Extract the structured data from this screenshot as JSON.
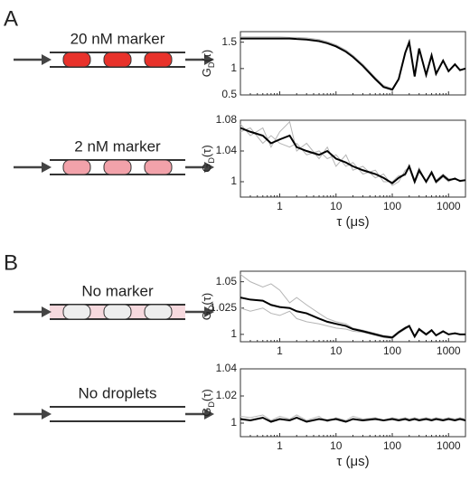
{
  "panel_labels": [
    "A",
    "B"
  ],
  "diagrams": [
    {
      "label": "20 nM marker"
    },
    {
      "label": "2 nM marker"
    },
    {
      "label": "No marker"
    },
    {
      "label": "No droplets"
    }
  ],
  "chart_data": [
    {
      "type": "line",
      "ylabel": {
        "main": "G",
        "sub": "D",
        "tail": "(τ)"
      },
      "xscale": "log",
      "xlim": [
        0.2,
        2000
      ],
      "xticks": [
        1,
        10,
        100,
        1000
      ],
      "show_xticklabels": false,
      "ylim": [
        0.5,
        1.7
      ],
      "yticks": [
        0.5,
        1,
        1.5
      ],
      "x": [
        0.2,
        0.3,
        0.5,
        0.7,
        1,
        1.5,
        2,
        3,
        5,
        7,
        10,
        15,
        20,
        30,
        50,
        70,
        100,
        130,
        170,
        200,
        250,
        300,
        400,
        500,
        600,
        800,
        1000,
        1300,
        1600,
        2000
      ],
      "series": [
        {
          "color": "#b5b5b5",
          "values": [
            1.6,
            1.6,
            1.6,
            1.6,
            1.6,
            1.59,
            1.59,
            1.58,
            1.55,
            1.51,
            1.45,
            1.35,
            1.25,
            1.08,
            0.83,
            0.68,
            0.62,
            0.82,
            1.28,
            1.47,
            0.86,
            1.36,
            0.89,
            1.23,
            0.91,
            1.14,
            0.96,
            1.07,
            0.98,
            1.0
          ]
        },
        {
          "color": "#000000",
          "values": [
            1.57,
            1.57,
            1.57,
            1.57,
            1.57,
            1.57,
            1.56,
            1.55,
            1.52,
            1.48,
            1.42,
            1.32,
            1.22,
            1.05,
            0.8,
            0.65,
            0.6,
            0.8,
            1.3,
            1.5,
            0.85,
            1.38,
            0.88,
            1.25,
            0.9,
            1.15,
            0.95,
            1.08,
            0.97,
            1.0
          ]
        }
      ]
    },
    {
      "type": "line",
      "ylabel": {
        "main": "G",
        "sub": "D",
        "tail": "(τ)"
      },
      "xlabel": "τ (μs)",
      "xscale": "log",
      "xlim": [
        0.2,
        2000
      ],
      "xticks": [
        1,
        10,
        100,
        1000
      ],
      "show_xticklabels": true,
      "ylim": [
        0.98,
        1.08
      ],
      "yticks": [
        1,
        1.04,
        1.08
      ],
      "x": [
        0.2,
        0.3,
        0.5,
        0.7,
        1,
        1.5,
        2,
        3,
        5,
        7,
        10,
        15,
        20,
        30,
        50,
        70,
        100,
        130,
        170,
        200,
        250,
        300,
        400,
        500,
        600,
        800,
        1000,
        1300,
        1600,
        2000
      ],
      "series": [
        {
          "color": "#b5b5b5",
          "values": [
            1.075,
            1.06,
            1.07,
            1.045,
            1.065,
            1.078,
            1.04,
            1.05,
            1.03,
            1.045,
            1.02,
            1.035,
            1.015,
            1.02,
            1.005,
            1.01,
            0.995,
            1.0,
            1.015,
            1.018,
            0.998,
            1.012,
            1.002,
            1.01,
            0.998,
            1.006,
            1.0,
            1.005,
            1.0,
            1.003
          ]
        },
        {
          "color": "#b5b5b5",
          "values": [
            1.065,
            1.07,
            1.05,
            1.06,
            1.05,
            1.045,
            1.05,
            1.035,
            1.04,
            1.03,
            1.035,
            1.02,
            1.025,
            1.01,
            1.015,
            1.0,
            1.0,
            1.008,
            1.008,
            1.022,
            1.002,
            1.018,
            0.999,
            1.014,
            1.002,
            1.01,
            1.004,
            1.003,
            1.002,
            1.001
          ]
        },
        {
          "color": "#000000",
          "values": [
            1.07,
            1.065,
            1.06,
            1.05,
            1.055,
            1.06,
            1.045,
            1.04,
            1.035,
            1.04,
            1.03,
            1.025,
            1.02,
            1.015,
            1.01,
            1.005,
            0.998,
            1.005,
            1.01,
            1.02,
            1.0,
            1.015,
            1.0,
            1.012,
            1.0,
            1.008,
            1.002,
            1.004,
            1.001,
            1.002
          ]
        }
      ]
    },
    {
      "type": "line",
      "ylabel": {
        "main": "G",
        "sub": "D",
        "tail": "(τ)"
      },
      "xscale": "log",
      "xlim": [
        0.2,
        2000
      ],
      "xticks": [
        1,
        10,
        100,
        1000
      ],
      "show_xticklabels": true,
      "ylim": [
        0.993,
        1.06
      ],
      "yticks": [
        1,
        1.025,
        1.05
      ],
      "x": [
        0.2,
        0.3,
        0.5,
        0.7,
        1,
        1.5,
        2,
        3,
        5,
        7,
        10,
        15,
        20,
        30,
        50,
        70,
        100,
        130,
        170,
        200,
        250,
        300,
        400,
        500,
        600,
        800,
        1000,
        1300,
        1600,
        2000
      ],
      "series": [
        {
          "color": "#b5b5b5",
          "values": [
            1.057,
            1.05,
            1.045,
            1.048,
            1.042,
            1.03,
            1.035,
            1.028,
            1.02,
            1.015,
            1.012,
            1.01,
            1.006,
            1.004,
            1.001,
            0.999,
            0.998,
            1.003,
            1.007,
            1.008,
            0.998,
            1.006,
            1.0,
            1.004,
            0.999,
            1.003,
            1.0,
            1.001,
            1.0,
            1.0
          ]
        },
        {
          "color": "#b5b5b5",
          "values": [
            1.025,
            1.022,
            1.025,
            1.02,
            1.018,
            1.022,
            1.015,
            1.012,
            1.01,
            1.008,
            1.006,
            1.005,
            1.003,
            1.002,
            0.999,
            0.997,
            0.996,
            1.001,
            1.005,
            1.007,
            0.997,
            1.004,
            0.999,
            1.003,
            0.999,
            1.002,
            1.0,
            1.001,
            1.0,
            1.0
          ]
        },
        {
          "color": "#000000",
          "values": [
            1.035,
            1.033,
            1.032,
            1.028,
            1.026,
            1.025,
            1.022,
            1.02,
            1.015,
            1.012,
            1.01,
            1.008,
            1.005,
            1.003,
            1.0,
            0.998,
            0.997,
            1.002,
            1.006,
            1.008,
            0.998,
            1.005,
            1.0,
            1.004,
            0.999,
            1.003,
            1.0,
            1.001,
            1.0,
            1.0
          ]
        }
      ]
    },
    {
      "type": "line",
      "ylabel": {
        "main": "G",
        "sub": "D",
        "tail": "(τ)"
      },
      "xlabel": "τ (μs)",
      "xscale": "log",
      "xlim": [
        0.2,
        2000
      ],
      "xticks": [
        1,
        10,
        100,
        1000
      ],
      "show_xticklabels": true,
      "ylim": [
        0.99,
        1.04
      ],
      "yticks": [
        1,
        1.02,
        1.04
      ],
      "x": [
        0.2,
        0.3,
        0.5,
        0.7,
        1,
        1.5,
        2,
        3,
        5,
        7,
        10,
        15,
        20,
        30,
        50,
        70,
        100,
        130,
        170,
        200,
        250,
        300,
        400,
        500,
        600,
        800,
        1000,
        1300,
        1600,
        2000
      ],
      "series": [
        {
          "color": "#b5b5b5",
          "values": [
            1.005,
            1.004,
            1.006,
            1.002,
            1.005,
            1.003,
            1.006,
            1.002,
            1.005,
            1.001,
            1.004,
            1.002,
            1.005,
            1.003,
            1.004,
            1.002,
            1.004,
            1.003,
            1.004,
            1.003,
            1.004,
            1.003,
            1.004,
            1.003,
            1.004,
            1.003,
            1.004,
            1.003,
            1.004,
            1.003
          ]
        },
        {
          "color": "#000000",
          "values": [
            1.003,
            1.002,
            1.004,
            1.001,
            1.003,
            1.002,
            1.004,
            1.001,
            1.003,
            1.002,
            1.003,
            1.001,
            1.003,
            1.002,
            1.003,
            1.002,
            1.003,
            1.002,
            1.003,
            1.002,
            1.003,
            1.002,
            1.003,
            1.002,
            1.003,
            1.002,
            1.003,
            1.002,
            1.003,
            1.002
          ]
        }
      ]
    }
  ]
}
